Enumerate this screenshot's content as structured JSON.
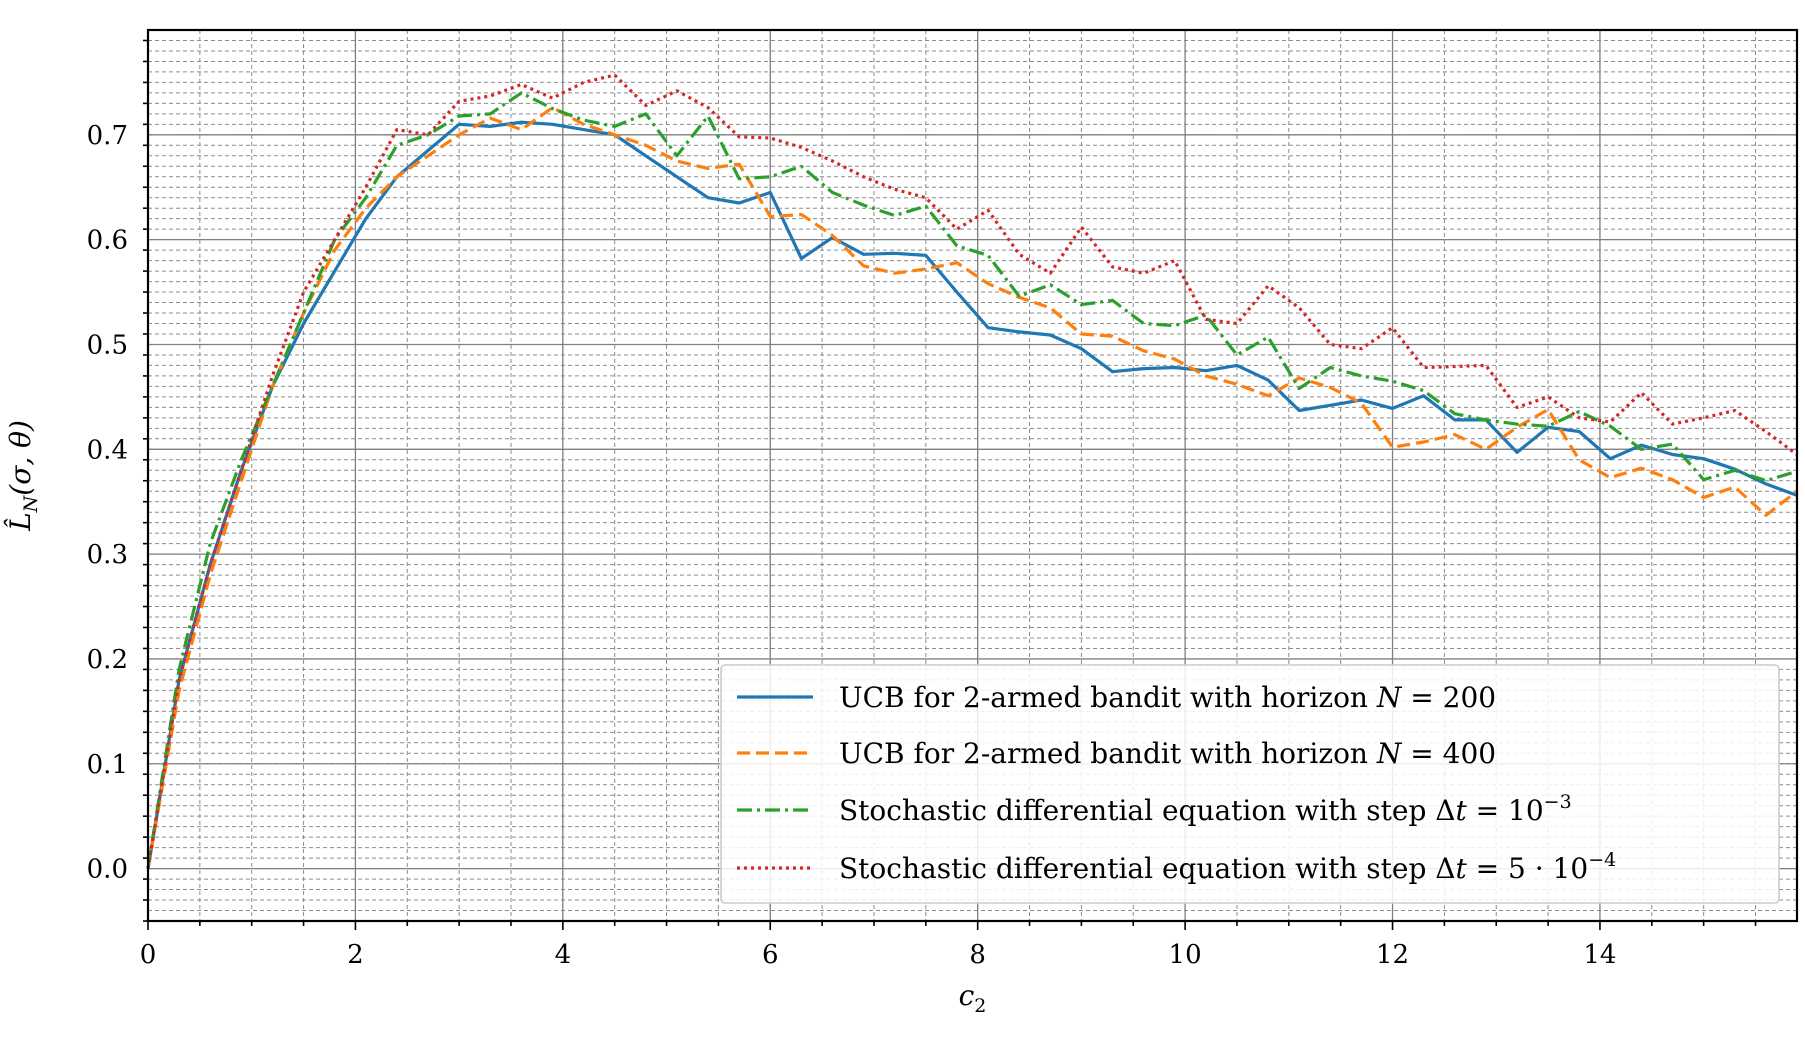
{
  "chart_data": {
    "type": "line",
    "title": "",
    "xlabel": "c₂",
    "ylabel": "L̂N(σ, θ)",
    "xlim": [
      0,
      15.9
    ],
    "ylim": [
      -0.05,
      0.8
    ],
    "xticks": [
      0,
      2,
      4,
      6,
      8,
      10,
      12,
      14
    ],
    "yticks": [
      0.0,
      0.1,
      0.2,
      0.3,
      0.4,
      0.5,
      0.6,
      0.7
    ],
    "xtick_labels": [
      "0",
      "2",
      "4",
      "6",
      "8",
      "10",
      "12",
      "14"
    ],
    "ytick_labels": [
      "0.0",
      "0.1",
      "0.2",
      "0.3",
      "0.4",
      "0.5",
      "0.6",
      "0.7"
    ],
    "grid": true,
    "minor_grid": true,
    "legend_position": "lower-right",
    "series": [
      {
        "name": "UCB for 2-armed bandit with horizon N = 200",
        "color": "#1f77b4",
        "dash": "solid",
        "x": [
          0,
          0.3,
          0.6,
          0.9,
          1.2,
          1.5,
          1.8,
          2.1,
          2.4,
          2.7,
          3.0,
          3.3,
          3.6,
          3.9,
          4.2,
          4.5,
          4.8,
          5.1,
          5.4,
          5.7,
          6.0,
          6.3,
          6.6,
          6.9,
          7.2,
          7.5,
          7.8,
          8.1,
          8.4,
          8.7,
          9.0,
          9.3,
          9.6,
          9.9,
          10.2,
          10.5,
          10.8,
          11.1,
          11.4,
          11.7,
          12.0,
          12.3,
          12.6,
          12.9,
          13.2,
          13.5,
          13.8,
          14.1,
          14.4,
          14.7,
          15.0,
          15.3,
          15.6,
          15.9
        ],
        "y": [
          0.0,
          0.18,
          0.29,
          0.38,
          0.46,
          0.52,
          0.57,
          0.62,
          0.66,
          0.685,
          0.71,
          0.708,
          0.712,
          0.71,
          0.705,
          0.7,
          0.68,
          0.66,
          0.64,
          0.635,
          0.645,
          0.582,
          0.602,
          0.586,
          0.587,
          0.585,
          0.55,
          0.516,
          0.512,
          0.509,
          0.496,
          0.474,
          0.477,
          0.478,
          0.475,
          0.48,
          0.466,
          0.437,
          0.442,
          0.447,
          0.439,
          0.451,
          0.428,
          0.428,
          0.397,
          0.421,
          0.417,
          0.391,
          0.404,
          0.395,
          0.391,
          0.381,
          0.367,
          0.356
        ]
      },
      {
        "name": "UCB for 2-armed bandit with horizon N = 400",
        "color": "#ff7f0e",
        "dash": "dashed",
        "x": [
          0,
          0.3,
          0.6,
          0.9,
          1.2,
          1.5,
          1.8,
          2.1,
          2.4,
          2.7,
          3.0,
          3.3,
          3.6,
          3.9,
          4.2,
          4.5,
          4.8,
          5.1,
          5.4,
          5.7,
          6.0,
          6.3,
          6.6,
          6.9,
          7.2,
          7.5,
          7.8,
          8.1,
          8.4,
          8.7,
          9.0,
          9.3,
          9.6,
          9.9,
          10.2,
          10.5,
          10.8,
          11.1,
          11.4,
          11.7,
          12.0,
          12.3,
          12.6,
          12.9,
          13.2,
          13.5,
          13.8,
          14.1,
          14.4,
          14.7,
          15.0,
          15.3,
          15.6,
          15.9
        ],
        "y": [
          0.0,
          0.17,
          0.28,
          0.37,
          0.46,
          0.53,
          0.59,
          0.63,
          0.66,
          0.68,
          0.7,
          0.716,
          0.705,
          0.726,
          0.71,
          0.7,
          0.69,
          0.675,
          0.668,
          0.672,
          0.622,
          0.624,
          0.604,
          0.575,
          0.568,
          0.572,
          0.578,
          0.558,
          0.545,
          0.535,
          0.51,
          0.508,
          0.494,
          0.486,
          0.47,
          0.462,
          0.451,
          0.468,
          0.459,
          0.444,
          0.402,
          0.407,
          0.414,
          0.4,
          0.421,
          0.438,
          0.39,
          0.373,
          0.382,
          0.371,
          0.354,
          0.364,
          0.337,
          0.36
        ]
      },
      {
        "name": "Stochastic differential equation with step Δt = 10⁻³",
        "color": "#2ca02c",
        "dash": "dashdot",
        "x": [
          0,
          0.3,
          0.6,
          0.9,
          1.2,
          1.5,
          1.8,
          2.1,
          2.4,
          2.7,
          3.0,
          3.3,
          3.6,
          3.9,
          4.2,
          4.5,
          4.8,
          5.1,
          5.4,
          5.7,
          6.0,
          6.3,
          6.6,
          6.9,
          7.2,
          7.5,
          7.8,
          8.1,
          8.4,
          8.7,
          9.0,
          9.3,
          9.6,
          9.9,
          10.2,
          10.5,
          10.8,
          11.1,
          11.4,
          11.7,
          12.0,
          12.3,
          12.6,
          12.9,
          13.2,
          13.5,
          13.8,
          14.1,
          14.4,
          14.7,
          15.0,
          15.3,
          15.6,
          15.9
        ],
        "y": [
          0.0,
          0.19,
          0.31,
          0.39,
          0.46,
          0.53,
          0.6,
          0.64,
          0.69,
          0.7,
          0.718,
          0.72,
          0.74,
          0.725,
          0.714,
          0.708,
          0.72,
          0.68,
          0.718,
          0.658,
          0.66,
          0.67,
          0.645,
          0.633,
          0.623,
          0.632,
          0.594,
          0.585,
          0.546,
          0.557,
          0.538,
          0.542,
          0.52,
          0.518,
          0.528,
          0.49,
          0.507,
          0.458,
          0.478,
          0.47,
          0.465,
          0.456,
          0.434,
          0.428,
          0.424,
          0.422,
          0.436,
          0.422,
          0.4,
          0.405,
          0.371,
          0.38,
          0.37,
          0.379
        ]
      },
      {
        "name": "Stochastic differential equation with step Δt = 5 · 10⁻⁴",
        "color": "#d62728",
        "dash": "dotted",
        "x": [
          0,
          0.3,
          0.6,
          0.9,
          1.2,
          1.5,
          1.8,
          2.1,
          2.4,
          2.7,
          3.0,
          3.3,
          3.6,
          3.9,
          4.2,
          4.5,
          4.8,
          5.1,
          5.4,
          5.7,
          6.0,
          6.3,
          6.6,
          6.9,
          7.2,
          7.5,
          7.8,
          8.1,
          8.4,
          8.7,
          9.0,
          9.3,
          9.6,
          9.9,
          10.2,
          10.5,
          10.8,
          11.1,
          11.4,
          11.7,
          12.0,
          12.3,
          12.6,
          12.9,
          13.2,
          13.5,
          13.8,
          14.1,
          14.4,
          14.7,
          15.0,
          15.3,
          15.6,
          15.9
        ],
        "y": [
          0.0,
          0.18,
          0.29,
          0.38,
          0.47,
          0.55,
          0.6,
          0.65,
          0.705,
          0.7,
          0.732,
          0.737,
          0.748,
          0.735,
          0.75,
          0.757,
          0.728,
          0.742,
          0.726,
          0.698,
          0.697,
          0.688,
          0.675,
          0.66,
          0.648,
          0.64,
          0.61,
          0.628,
          0.586,
          0.568,
          0.612,
          0.574,
          0.568,
          0.58,
          0.524,
          0.52,
          0.556,
          0.535,
          0.5,
          0.496,
          0.516,
          0.478,
          0.479,
          0.48,
          0.44,
          0.45,
          0.43,
          0.426,
          0.454,
          0.424,
          0.43,
          0.437,
          0.417,
          0.395
        ]
      }
    ]
  },
  "legend": {
    "items": [
      {
        "prefix": "UCB for 2-armed bandit with horizon ",
        "var": "N",
        "suffix": " = 200"
      },
      {
        "prefix": "UCB for 2-armed bandit with horizon ",
        "var": "N",
        "suffix": " = 400"
      },
      {
        "prefix": "Stochastic differential equation with step Δ",
        "var": "t",
        "suffix": " = 10",
        "sup": "−3"
      },
      {
        "prefix": "Stochastic differential equation with step Δ",
        "var": "t",
        "suffix": " = 5 · 10",
        "sup": "−4"
      }
    ]
  },
  "axis_labels": {
    "x_main": "c",
    "x_sub": "2",
    "y_main": "L̂",
    "y_sub": "N",
    "y_rest": "(σ, θ)"
  }
}
